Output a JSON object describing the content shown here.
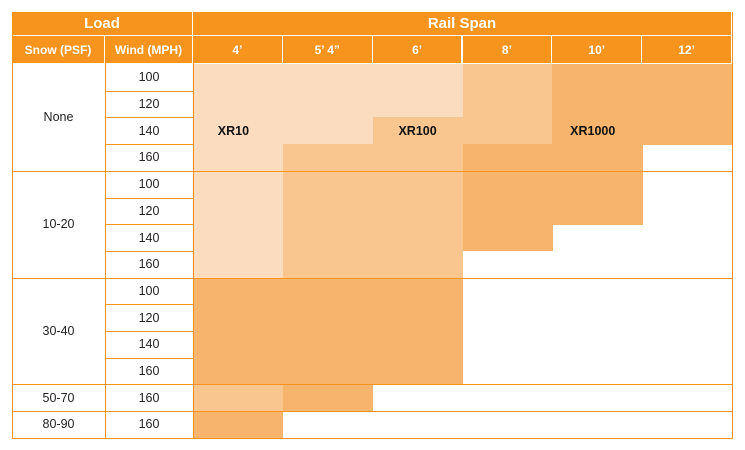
{
  "header": {
    "load": "Load",
    "rail_span": "Rail Span",
    "snow_col": "Snow (PSF)",
    "wind_col": "Wind (MPH)",
    "spans": [
      "4’",
      "5’ 4”",
      "6’",
      "8’",
      "10’",
      "12’"
    ]
  },
  "groups": [
    {
      "snow": "None",
      "winds": [
        "100",
        "120",
        "140",
        "160"
      ]
    },
    {
      "snow": "10-20",
      "winds": [
        "100",
        "120",
        "140",
        "160"
      ]
    },
    {
      "snow": "30-40",
      "winds": [
        "100",
        "120",
        "140",
        "160"
      ]
    },
    {
      "snow": "50-70",
      "winds": [
        "160"
      ]
    },
    {
      "snow": "80-90",
      "winds": [
        "160"
      ]
    }
  ],
  "rails": [
    {
      "name": "XR10",
      "color": "#fbdcbf"
    },
    {
      "name": "XR100",
      "color": "#f9c690"
    },
    {
      "name": "XR1000",
      "color": "#f7b46d"
    }
  ],
  "matrix": [
    [
      0,
      0,
      0,
      1,
      2,
      2
    ],
    [
      0,
      0,
      0,
      1,
      2,
      2
    ],
    [
      0,
      0,
      1,
      1,
      2,
      2
    ],
    [
      0,
      1,
      1,
      2,
      2,
      -1
    ],
    [
      0,
      1,
      1,
      2,
      2,
      -1
    ],
    [
      0,
      1,
      1,
      2,
      2,
      -1
    ],
    [
      0,
      1,
      1,
      2,
      -1,
      -1
    ],
    [
      0,
      1,
      1,
      -1,
      -1,
      -1
    ],
    [
      2,
      2,
      2,
      -1,
      -1,
      -1
    ],
    [
      2,
      2,
      2,
      -1,
      -1,
      -1
    ],
    [
      2,
      2,
      2,
      -1,
      -1,
      -1
    ],
    [
      2,
      2,
      2,
      -1,
      -1,
      -1
    ],
    [
      1,
      2,
      -1,
      -1,
      -1,
      -1
    ],
    [
      2,
      -1,
      -1,
      -1,
      -1,
      -1
    ]
  ],
  "region_labels": [
    "XR10",
    "XR100",
    "XR1000"
  ],
  "colors": {
    "header": "#f7941e",
    "grid_line": "#f7941e"
  }
}
